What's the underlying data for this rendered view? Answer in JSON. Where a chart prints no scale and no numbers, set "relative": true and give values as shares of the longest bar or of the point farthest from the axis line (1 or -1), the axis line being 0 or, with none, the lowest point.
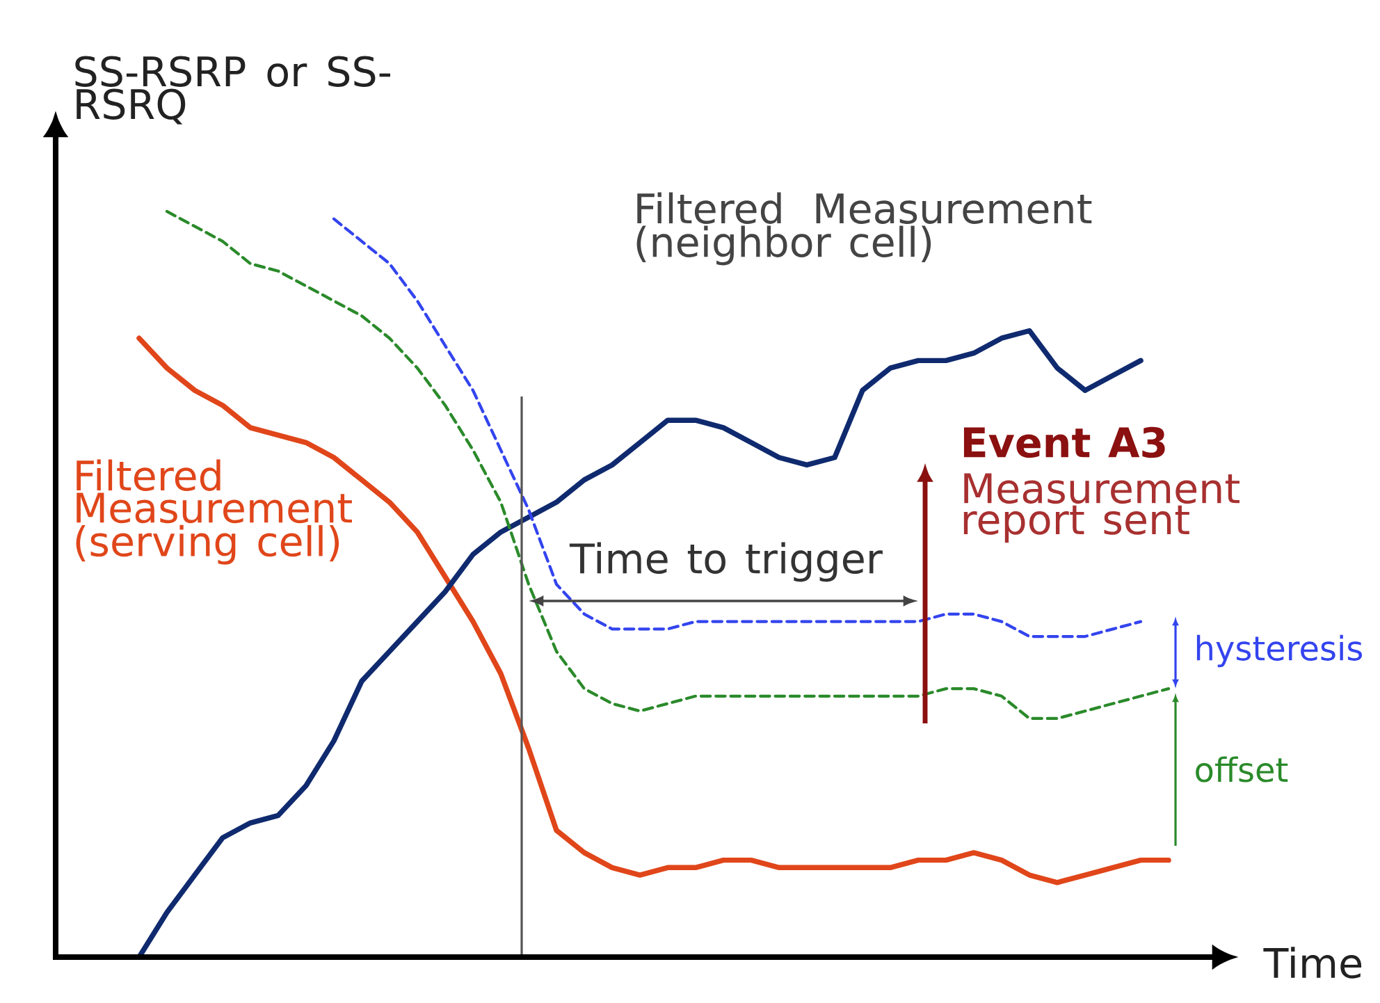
{
  "chart_data": {
    "type": "line",
    "relative": true,
    "xlabel": "Time",
    "ylabel": "SS-RSRP or SS-RSRQ",
    "categories": [
      null,
      null,
      null,
      null,
      null,
      null,
      null,
      null,
      null,
      null,
      null,
      null,
      null,
      null,
      null,
      null,
      null,
      null,
      null,
      null,
      null,
      null,
      null,
      null,
      null,
      null,
      null,
      null,
      null,
      null,
      null,
      null,
      null,
      null,
      null,
      null,
      null,
      null,
      null,
      null,
      null
    ],
    "series": [
      {
        "name": "Filtered Measurement (serving cell)",
        "color": "#e0461a",
        "line_style": "solid",
        "values": [
          null,
          null,
          null,
          0.83,
          0.79,
          0.76,
          0.74,
          0.71,
          0.7,
          0.69,
          0.67,
          0.64,
          0.61,
          0.57,
          0.51,
          0.45,
          0.38,
          0.28,
          0.17,
          0.14,
          0.12,
          0.11,
          0.12,
          0.12,
          0.13,
          0.13,
          0.12,
          0.12,
          0.12,
          0.12,
          0.12,
          0.13,
          0.13,
          0.14,
          0.13,
          0.11,
          0.1,
          0.11,
          0.12,
          0.13,
          0.13
        ]
      },
      {
        "name": "Filtered Measurement (neighbor cell)",
        "color": "#0f2a6e",
        "line_style": "solid",
        "values": [
          null,
          null,
          null,
          0,
          0.06,
          0.11,
          0.16,
          0.18,
          0.19,
          0.23,
          0.29,
          0.37,
          0.41,
          0.45,
          0.49,
          0.54,
          0.57,
          0.59,
          0.61,
          0.64,
          0.66,
          0.69,
          0.72,
          0.72,
          0.71,
          0.69,
          0.67,
          0.66,
          0.67,
          0.76,
          0.79,
          0.8,
          0.8,
          0.81,
          0.83,
          0.84,
          0.79,
          0.76,
          0.78,
          0.8,
          null
        ]
      },
      {
        "color": "#3344ee",
        "line_style": "dashed",
        "values": [
          null,
          null,
          null,
          null,
          null,
          null,
          null,
          null,
          null,
          null,
          0.99,
          0.96,
          0.93,
          0.88,
          0.82,
          0.76,
          0.68,
          0.6,
          0.5,
          0.46,
          0.44,
          0.44,
          0.44,
          0.45,
          0.45,
          0.45,
          0.45,
          0.45,
          0.45,
          0.45,
          0.45,
          0.45,
          0.46,
          0.46,
          0.45,
          0.43,
          0.43,
          0.43,
          0.44,
          0.45,
          null
        ]
      },
      {
        "color": "#2a8a2a",
        "line_style": "dashed",
        "values": [
          null,
          null,
          null,
          null,
          1.0,
          0.98,
          0.96,
          0.93,
          0.92,
          0.9,
          0.88,
          0.86,
          0.83,
          0.79,
          0.74,
          0.68,
          0.61,
          0.5,
          0.41,
          0.36,
          0.34,
          0.33,
          0.34,
          0.35,
          0.35,
          0.35,
          0.35,
          0.35,
          0.35,
          0.35,
          0.35,
          0.35,
          0.36,
          0.36,
          0.35,
          0.32,
          0.32,
          0.33,
          0.34,
          0.35,
          0.36
        ]
      }
    ],
    "annotations": [
      "Time to trigger",
      "Event A3",
      "Measurement report sent",
      "hysteresis",
      "offset"
    ]
  }
}
